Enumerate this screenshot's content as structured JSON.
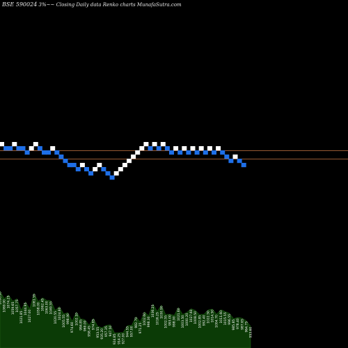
{
  "header": {
    "symbol": "BSE 590024",
    "description": "3%~~ Closing Daily data Renko charts MunafaSutra.com"
  },
  "chart_data": {
    "type": "renko",
    "box_colors": {
      "up": "#ffffff",
      "down": "#1e6fe8"
    },
    "reference_lines": [
      {
        "color": "#c87845"
      },
      {
        "color": "#c87845"
      }
    ],
    "bricks": [
      {
        "col": 0,
        "row": 4,
        "dir": "up"
      },
      {
        "col": 1,
        "row": 3,
        "dir": "down"
      },
      {
        "col": 2,
        "row": 3,
        "dir": "down"
      },
      {
        "col": 3,
        "row": 4,
        "dir": "up"
      },
      {
        "col": 4,
        "row": 3,
        "dir": "down"
      },
      {
        "col": 5,
        "row": 3,
        "dir": "down"
      },
      {
        "col": 6,
        "row": 2,
        "dir": "down"
      },
      {
        "col": 7,
        "row": 3,
        "dir": "up"
      },
      {
        "col": 8,
        "row": 4,
        "dir": "up"
      },
      {
        "col": 9,
        "row": 3,
        "dir": "down"
      },
      {
        "col": 10,
        "row": 2,
        "dir": "down"
      },
      {
        "col": 11,
        "row": 2,
        "dir": "down"
      },
      {
        "col": 12,
        "row": 3,
        "dir": "up"
      },
      {
        "col": 13,
        "row": 2,
        "dir": "down"
      },
      {
        "col": 14,
        "row": 1,
        "dir": "down"
      },
      {
        "col": 15,
        "row": 0,
        "dir": "down"
      },
      {
        "col": 16,
        "row": -1,
        "dir": "down"
      },
      {
        "col": 17,
        "row": -1,
        "dir": "down"
      },
      {
        "col": 18,
        "row": -2,
        "dir": "down"
      },
      {
        "col": 19,
        "row": -1,
        "dir": "up"
      },
      {
        "col": 20,
        "row": -2,
        "dir": "down"
      },
      {
        "col": 21,
        "row": -3,
        "dir": "down"
      },
      {
        "col": 22,
        "row": -2,
        "dir": "up"
      },
      {
        "col": 23,
        "row": -1,
        "dir": "up"
      },
      {
        "col": 24,
        "row": -2,
        "dir": "down"
      },
      {
        "col": 25,
        "row": -3,
        "dir": "down"
      },
      {
        "col": 26,
        "row": -4,
        "dir": "down"
      },
      {
        "col": 27,
        "row": -3,
        "dir": "up"
      },
      {
        "col": 28,
        "row": -2,
        "dir": "up"
      },
      {
        "col": 29,
        "row": -1,
        "dir": "up"
      },
      {
        "col": 30,
        "row": 0,
        "dir": "up"
      },
      {
        "col": 31,
        "row": 1,
        "dir": "up"
      },
      {
        "col": 32,
        "row": 2,
        "dir": "up"
      },
      {
        "col": 33,
        "row": 3,
        "dir": "up"
      },
      {
        "col": 34,
        "row": 4,
        "dir": "up"
      },
      {
        "col": 35,
        "row": 3,
        "dir": "down"
      },
      {
        "col": 36,
        "row": 4,
        "dir": "up"
      },
      {
        "col": 37,
        "row": 3,
        "dir": "down"
      },
      {
        "col": 38,
        "row": 4,
        "dir": "up"
      },
      {
        "col": 39,
        "row": 3,
        "dir": "down"
      },
      {
        "col": 40,
        "row": 2,
        "dir": "down"
      },
      {
        "col": 41,
        "row": 3,
        "dir": "up"
      },
      {
        "col": 42,
        "row": 2,
        "dir": "down"
      },
      {
        "col": 43,
        "row": 3,
        "dir": "up"
      },
      {
        "col": 44,
        "row": 2,
        "dir": "down"
      },
      {
        "col": 45,
        "row": 3,
        "dir": "up"
      },
      {
        "col": 46,
        "row": 2,
        "dir": "down"
      },
      {
        "col": 47,
        "row": 3,
        "dir": "up"
      },
      {
        "col": 48,
        "row": 2,
        "dir": "down"
      },
      {
        "col": 49,
        "row": 3,
        "dir": "up"
      },
      {
        "col": 50,
        "row": 2,
        "dir": "down"
      },
      {
        "col": 51,
        "row": 3,
        "dir": "up"
      },
      {
        "col": 52,
        "row": 2,
        "dir": "down"
      },
      {
        "col": 53,
        "row": 1,
        "dir": "down"
      },
      {
        "col": 54,
        "row": 0,
        "dir": "down"
      },
      {
        "col": 55,
        "row": 1,
        "dir": "up"
      },
      {
        "col": 56,
        "row": 0,
        "dir": "down"
      },
      {
        "col": 57,
        "row": -1,
        "dir": "down"
      }
    ],
    "volume_labels": [
      "1090.90",
      "1069.90",
      "1074.25",
      "1059.65",
      "1057.75",
      "1021.85",
      "1044.95",
      "1027.00",
      "1081.55",
      "1058.00",
      "1062.45",
      "1063.00",
      "1049.55",
      "1020.55",
      "1024.80",
      "1005.55",
      "998.90",
      "974.60",
      "1002.10",
      "984.85",
      "969.00",
      "958.45",
      "974.85",
      "953.55",
      "935.20",
      "957.35",
      "947.50",
      "924.85",
      "914.25",
      "927.00",
      "944.55",
      "957.00",
      "982.70",
      "971.25",
      "1002.60",
      "998.30",
      "1036.25",
      "1016.25",
      "1030.90",
      "1002.55",
      "993.00",
      "998.90",
      "1021.60",
      "1003.50",
      "1000.20",
      "1027.60",
      "1008.50",
      "1002.85",
      "992.40",
      "1022.50",
      "1014.50",
      "1004.70",
      "1011.60",
      "1015.55",
      "996.55",
      "985.85",
      "978.40",
      "987.65",
      "964.75",
      "953.60"
    ]
  }
}
